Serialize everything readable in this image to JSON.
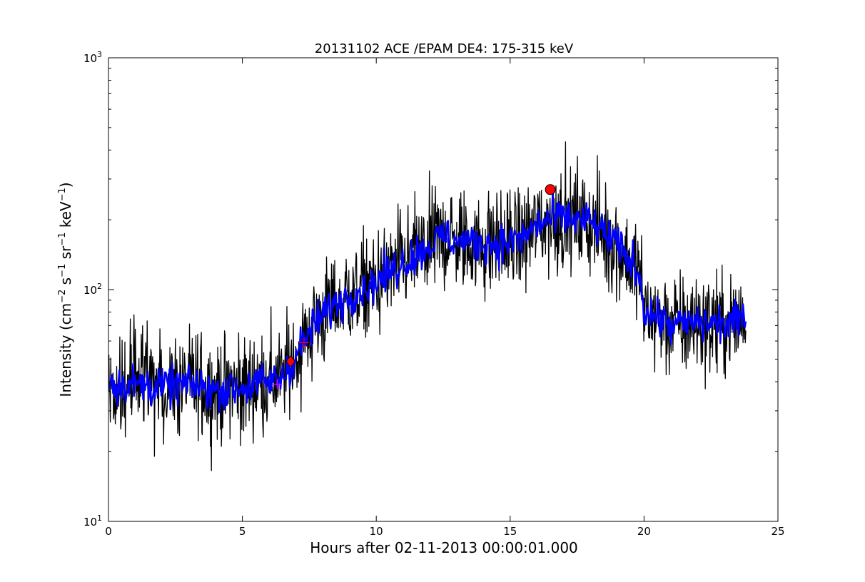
{
  "chart_data": {
    "type": "line",
    "title": "20131102 ACE /EPAM DE4: 175-315 keV",
    "xlabel": "Hours after 02-11-2013 00:00:01.000",
    "ylabel": {
      "prefix": "Intensity (cm",
      "exp1": "−2",
      "s": " s",
      "exp2": "−1",
      "sr": " sr",
      "exp3": "−1",
      "kev": " keV",
      "exp4": "−1",
      "suffix": ")"
    },
    "xlim": [
      0,
      25
    ],
    "ylim": [
      10,
      1000
    ],
    "yscale": "log",
    "grid": false,
    "x_ticks": [
      0,
      5,
      10,
      15,
      20,
      25
    ],
    "x_tick_labels": [
      "0",
      "5",
      "10",
      "15",
      "20",
      "25"
    ],
    "y_ticks": [
      10,
      100,
      1000
    ],
    "y_tick_labels": [
      {
        "base": "10",
        "exp": "1"
      },
      {
        "base": "10",
        "exp": "2"
      },
      {
        "base": "10",
        "exp": "3"
      }
    ],
    "series": [
      {
        "color": "#000000",
        "style": "raw-noisy",
        "x": [
          0,
          1,
          2,
          3,
          4,
          5,
          6,
          6.5,
          7,
          8,
          9,
          10,
          11,
          12,
          12.5,
          13,
          14,
          15,
          15.5,
          16,
          16.5,
          17,
          18,
          19,
          19.5,
          19.8,
          20,
          21,
          22,
          23,
          23.8
        ],
        "y": [
          40,
          39,
          38,
          39,
          37,
          38,
          40,
          42,
          52,
          78,
          95,
          108,
          130,
          155,
          170,
          162,
          158,
          160,
          168,
          190,
          200,
          205,
          195,
          155,
          130,
          120,
          82,
          70,
          72,
          71,
          74
        ]
      },
      {
        "color": "#0000ff",
        "style": "smoothed",
        "x": [
          0,
          1,
          2,
          3,
          4,
          5,
          6,
          6.5,
          7,
          8,
          9,
          10,
          11,
          12,
          12.5,
          13,
          14,
          15,
          15.5,
          16,
          16.5,
          17,
          18,
          19,
          19.5,
          19.8,
          20,
          21,
          22,
          23,
          23.8
        ],
        "y": [
          40,
          39,
          38,
          39,
          37,
          38,
          40,
          42,
          52,
          78,
          95,
          108,
          130,
          155,
          170,
          162,
          158,
          160,
          168,
          190,
          200,
          205,
          195,
          155,
          130,
          120,
          82,
          70,
          72,
          71,
          74
        ]
      }
    ],
    "markers": [
      {
        "type": "circle",
        "color": "#ff0000",
        "x": 16.5,
        "y": 270
      },
      {
        "type": "diamond",
        "color": "#ff0000",
        "x": 6.8,
        "y": 49
      },
      {
        "type": "plus",
        "color": "#ff00ff",
        "x": 6.3,
        "y": 39
      },
      {
        "type": "plus",
        "color": "#ff0000",
        "x": 7.3,
        "y": 59
      }
    ]
  }
}
